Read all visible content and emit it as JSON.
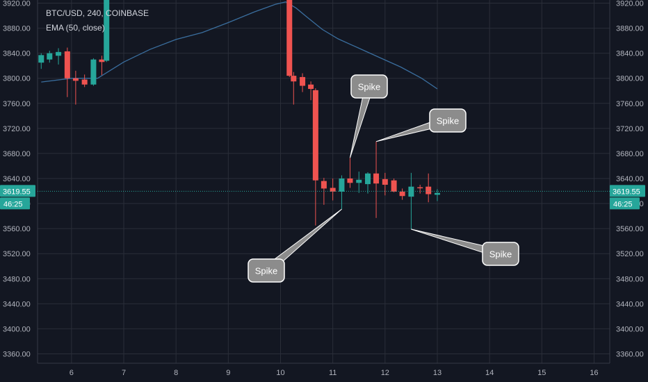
{
  "header": {
    "symbol": "BTC/USD, 240, COINBASE",
    "indicator": "EMA (50, close)"
  },
  "colors": {
    "background": "#131722",
    "grid": "#2a2e39",
    "axis_text": "#b2b5be",
    "up": "#26a69a",
    "down": "#ef5350",
    "ema": "#3a6e9e",
    "callout_fill": "#8c8c8c"
  },
  "chart_data": {
    "type": "candlestick",
    "x_axis": {
      "ticks": [
        "6",
        "7",
        "8",
        "9",
        "10",
        "11",
        "12",
        "13",
        "14",
        "15",
        "16"
      ],
      "range": [
        5.35,
        16.3
      ]
    },
    "y_axis": {
      "range": [
        3345,
        3925
      ],
      "ticks": [
        "3360.00",
        "3400.00",
        "3440.00",
        "3480.00",
        "3520.00",
        "3560.00",
        "3600.00",
        "3640.00",
        "3680.00",
        "3720.00",
        "3760.00",
        "3800.00",
        "3840.00",
        "3880.00",
        "3920.00"
      ]
    },
    "last_price": {
      "value": 3619.55,
      "label": "3619.55",
      "countdown": "46:25"
    },
    "candles": [
      {
        "t": 5.42,
        "o": 3825,
        "h": 3840,
        "l": 3815,
        "c": 3837
      },
      {
        "t": 5.58,
        "o": 3830,
        "h": 3844,
        "l": 3825,
        "c": 3840
      },
      {
        "t": 5.75,
        "o": 3836,
        "h": 3848,
        "l": 3822,
        "c": 3842
      },
      {
        "t": 5.92,
        "o": 3843,
        "h": 3849,
        "l": 3770,
        "c": 3800
      },
      {
        "t": 6.08,
        "o": 3800,
        "h": 3812,
        "l": 3758,
        "c": 3796
      },
      {
        "t": 6.25,
        "o": 3798,
        "h": 3806,
        "l": 3786,
        "c": 3790
      },
      {
        "t": 6.42,
        "o": 3790,
        "h": 3832,
        "l": 3788,
        "c": 3830
      },
      {
        "t": 6.58,
        "o": 3830,
        "h": 3836,
        "l": 3805,
        "c": 3826
      },
      {
        "t": 6.67,
        "o": 3828,
        "h": 3925,
        "l": 3826,
        "c": 3925
      },
      {
        "t": 10.17,
        "o": 3925,
        "h": 3925,
        "l": 3802,
        "c": 3804
      },
      {
        "t": 10.25,
        "o": 3804,
        "h": 3810,
        "l": 3758,
        "c": 3795
      },
      {
        "t": 10.42,
        "o": 3802,
        "h": 3808,
        "l": 3778,
        "c": 3788
      },
      {
        "t": 10.58,
        "o": 3790,
        "h": 3795,
        "l": 3765,
        "c": 3783
      },
      {
        "t": 10.67,
        "o": 3781,
        "h": 3784,
        "l": 3565,
        "c": 3637
      },
      {
        "t": 10.83,
        "o": 3636,
        "h": 3641,
        "l": 3598,
        "c": 3624
      },
      {
        "t": 11.0,
        "o": 3625,
        "h": 3640,
        "l": 3605,
        "c": 3619
      },
      {
        "t": 11.17,
        "o": 3619,
        "h": 3645,
        "l": 3591,
        "c": 3640
      },
      {
        "t": 11.33,
        "o": 3640,
        "h": 3673,
        "l": 3625,
        "c": 3633
      },
      {
        "t": 11.5,
        "o": 3633,
        "h": 3651,
        "l": 3617,
        "c": 3638
      },
      {
        "t": 11.67,
        "o": 3631,
        "h": 3650,
        "l": 3616,
        "c": 3648
      },
      {
        "t": 11.83,
        "o": 3648,
        "h": 3699,
        "l": 3577,
        "c": 3632
      },
      {
        "t": 12.0,
        "o": 3639,
        "h": 3649,
        "l": 3613,
        "c": 3630
      },
      {
        "t": 12.17,
        "o": 3637,
        "h": 3640,
        "l": 3618,
        "c": 3619
      },
      {
        "t": 12.33,
        "o": 3619,
        "h": 3624,
        "l": 3606,
        "c": 3612
      },
      {
        "t": 12.5,
        "o": 3611,
        "h": 3649,
        "l": 3559,
        "c": 3627
      },
      {
        "t": 12.67,
        "o": 3626,
        "h": 3630,
        "l": 3616,
        "c": 3625
      },
      {
        "t": 12.83,
        "o": 3627,
        "h": 3648,
        "l": 3602,
        "c": 3615
      },
      {
        "t": 13.0,
        "o": 3614,
        "h": 3623,
        "l": 3604,
        "c": 3617
      }
    ],
    "ema": {
      "name": "EMA (50, close)",
      "points": [
        [
          5.42,
          3794
        ],
        [
          6.0,
          3800
        ],
        [
          6.5,
          3800
        ],
        [
          7.0,
          3826
        ],
        [
          7.5,
          3846
        ],
        [
          8.0,
          3862
        ],
        [
          8.5,
          3873
        ],
        [
          9.0,
          3889
        ],
        [
          9.5,
          3906
        ],
        [
          9.9,
          3918
        ],
        [
          10.1,
          3922
        ],
        [
          10.3,
          3912
        ],
        [
          10.5,
          3898
        ],
        [
          10.8,
          3878
        ],
        [
          11.1,
          3863
        ],
        [
          11.5,
          3848
        ],
        [
          11.9,
          3833
        ],
        [
          12.3,
          3818
        ],
        [
          12.7,
          3800
        ],
        [
          13.0,
          3783
        ]
      ]
    },
    "annotations": [
      {
        "text": "Spike",
        "anchor": [
          11.17,
          3591
        ]
      },
      {
        "text": "Spike",
        "anchor": [
          11.33,
          3673
        ]
      },
      {
        "text": "Spike",
        "anchor": [
          11.83,
          3699
        ]
      },
      {
        "text": "Spike",
        "anchor": [
          12.5,
          3559
        ]
      }
    ]
  }
}
